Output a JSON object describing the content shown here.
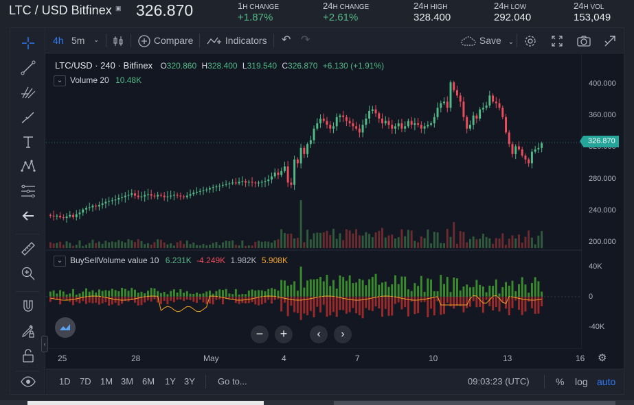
{
  "ticker": {
    "pair": "LTC / USD Bitfinex",
    "last_price": "326.870",
    "stats": [
      {
        "num": "1",
        "label": "H CHANGE",
        "value": "+1.87%",
        "up": true
      },
      {
        "num": "24",
        "label": "H CHANGE",
        "value": "+2.61%",
        "up": true
      },
      {
        "num": "24",
        "label": "H HIGH",
        "value": "328.400",
        "up": false
      },
      {
        "num": "24",
        "label": "H LOW",
        "value": "292.040",
        "up": false
      },
      {
        "num": "24",
        "label": "H VOL",
        "value": "153,049",
        "up": false
      }
    ]
  },
  "toolbar": {
    "interval_active": "4h",
    "interval_alt": "5m",
    "compare": "Compare",
    "indicators": "Indicators",
    "save": "Save"
  },
  "legend": {
    "symbol": "LTC/USD · 240 · Bitfinex",
    "o_label": "O",
    "o": "320.860",
    "h_label": "H",
    "h": "328.400",
    "l_label": "L",
    "l": "319.540",
    "c_label": "C",
    "c": "326.870",
    "change": "+6.130 (+1.91%)",
    "volume_label": "Volume 20",
    "volume_value": "10.48K",
    "bsv_label": "BuySellVolume value 10",
    "bsv_buy": "6.231K",
    "bsv_sell": "-4.249K",
    "bsv_net": "1.982K",
    "bsv_total": "5.908K"
  },
  "price_axis": {
    "ticks": [
      "400.000",
      "360.000",
      "320.000",
      "280.000",
      "240.000",
      "200.000"
    ],
    "current": "326.870"
  },
  "indicator_axis": {
    "ticks": [
      "40K",
      "0",
      "-40K"
    ]
  },
  "time_axis": {
    "ticks": [
      "25",
      "28",
      "May",
      "4",
      "7",
      "10",
      "13",
      "16"
    ]
  },
  "bottom": {
    "ranges": [
      "1D",
      "7D",
      "1M",
      "3M",
      "6M",
      "1Y",
      "3Y"
    ],
    "goto": "Go to...",
    "clock": "09:03:23 (UTC)",
    "percent": "%",
    "log": "log",
    "auto": "auto"
  },
  "colors": {
    "up": "#53b987",
    "down": "#eb4d5c",
    "vol_up": "#305a3c",
    "vol_down": "#6b2b2f",
    "bsv_buy": "#3a8a2e",
    "bsv_sell": "#9b2a2a",
    "bsv_line": "#f5a623",
    "accent": "#2f7bf5"
  },
  "chart_data": {
    "type": "candlestick",
    "title": "LTC/USD · 240 · Bitfinex",
    "x_tick_labels": [
      "25",
      "28",
      "May",
      "4",
      "7",
      "10",
      "13",
      "16"
    ],
    "ylim": [
      190,
      415
    ],
    "y_ticks": [
      200,
      240,
      280,
      320,
      360,
      400
    ],
    "closes": [
      232,
      231,
      232,
      230,
      229,
      231,
      233,
      230,
      234,
      236,
      240,
      242,
      243,
      245,
      244,
      246,
      248,
      250,
      251,
      252,
      253,
      255,
      256,
      258,
      259,
      261,
      258,
      256,
      257,
      259,
      260,
      258,
      257,
      259,
      258,
      256,
      257,
      258,
      259,
      258,
      257,
      256,
      258,
      260,
      262,
      263,
      264,
      265,
      266,
      268,
      269,
      270,
      271,
      272,
      273,
      274,
      275,
      274,
      276,
      277,
      275,
      276,
      275,
      274,
      275,
      276,
      277,
      279,
      283,
      288,
      285,
      290,
      296,
      275,
      272,
      305,
      300,
      320,
      312,
      325,
      330,
      345,
      352,
      358,
      355,
      350,
      345,
      348,
      360,
      362,
      360,
      355,
      352,
      348,
      345,
      340,
      350,
      358,
      368,
      370,
      365,
      358,
      352,
      355,
      350,
      345,
      348,
      352,
      345,
      348,
      355,
      350,
      352,
      350,
      345,
      348,
      350,
      352,
      360,
      372,
      378,
      380,
      372,
      405,
      395,
      388,
      380,
      360,
      345,
      350,
      362,
      358,
      370,
      372,
      375,
      388,
      380,
      378,
      372,
      360,
      340,
      325,
      312,
      322,
      318,
      310,
      305,
      300,
      315,
      318,
      320,
      326
    ]
  }
}
